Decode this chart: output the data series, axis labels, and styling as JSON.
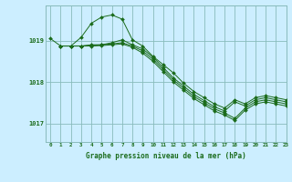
{
  "title": "Graphe pression niveau de la mer (hPa)",
  "bg_color": "#cceeff",
  "grid_color": "#88bbbb",
  "line_color": "#1a6b1a",
  "xlim": [
    -0.5,
    23
  ],
  "ylim": [
    1016.55,
    1019.85
  ],
  "yticks": [
    1017,
    1018,
    1019
  ],
  "xticks": [
    0,
    1,
    2,
    3,
    4,
    5,
    6,
    7,
    8,
    9,
    10,
    11,
    12,
    13,
    14,
    15,
    16,
    17,
    18,
    19,
    20,
    21,
    22,
    23
  ],
  "series": [
    {
      "x": [
        0,
        1,
        2,
        3,
        4,
        5,
        6,
        7,
        8,
        9,
        10,
        11,
        12,
        13,
        14,
        15,
        16,
        17,
        18,
        19,
        20,
        21,
        22,
        23
      ],
      "y": [
        1019.05,
        1018.87,
        1018.87,
        1019.08,
        1019.42,
        1019.57,
        1019.62,
        1019.52,
        1019.02,
        1018.87,
        1018.62,
        1018.42,
        1018.22,
        1017.97,
        1017.77,
        1017.62,
        1017.47,
        1017.37,
        1017.57,
        1017.47,
        1017.62,
        1017.67,
        1017.62,
        1017.57
      ]
    },
    {
      "x": [
        1,
        2,
        3,
        4,
        5,
        6,
        7,
        8,
        9,
        10,
        11,
        12,
        13,
        14,
        15,
        16,
        17,
        18,
        19,
        20,
        21,
        22,
        23
      ],
      "y": [
        1018.87,
        1018.87,
        1018.87,
        1018.9,
        1018.9,
        1018.95,
        1019.02,
        1018.9,
        1018.8,
        1018.6,
        1018.35,
        1018.1,
        1017.9,
        1017.7,
        1017.55,
        1017.4,
        1017.3,
        1017.52,
        1017.42,
        1017.57,
        1017.62,
        1017.57,
        1017.52
      ]
    },
    {
      "x": [
        1,
        2,
        3,
        4,
        5,
        6,
        7,
        8,
        9,
        10,
        11,
        12,
        13,
        14,
        15,
        16,
        17,
        18,
        19,
        20,
        21,
        22,
        23
      ],
      "y": [
        1018.87,
        1018.87,
        1018.87,
        1018.88,
        1018.9,
        1018.92,
        1018.95,
        1018.87,
        1018.75,
        1018.55,
        1018.3,
        1018.05,
        1017.85,
        1017.65,
        1017.5,
        1017.35,
        1017.25,
        1017.12,
        1017.37,
        1017.52,
        1017.57,
        1017.52,
        1017.47
      ]
    },
    {
      "x": [
        1,
        2,
        3,
        4,
        5,
        6,
        7,
        8,
        9,
        10,
        11,
        12,
        13,
        14,
        15,
        16,
        17,
        18,
        19,
        20,
        21,
        22,
        23
      ],
      "y": [
        1018.87,
        1018.87,
        1018.87,
        1018.87,
        1018.88,
        1018.9,
        1018.92,
        1018.84,
        1018.7,
        1018.5,
        1018.25,
        1018.0,
        1017.8,
        1017.6,
        1017.45,
        1017.3,
        1017.2,
        1017.07,
        1017.32,
        1017.47,
        1017.52,
        1017.47,
        1017.42
      ]
    }
  ]
}
